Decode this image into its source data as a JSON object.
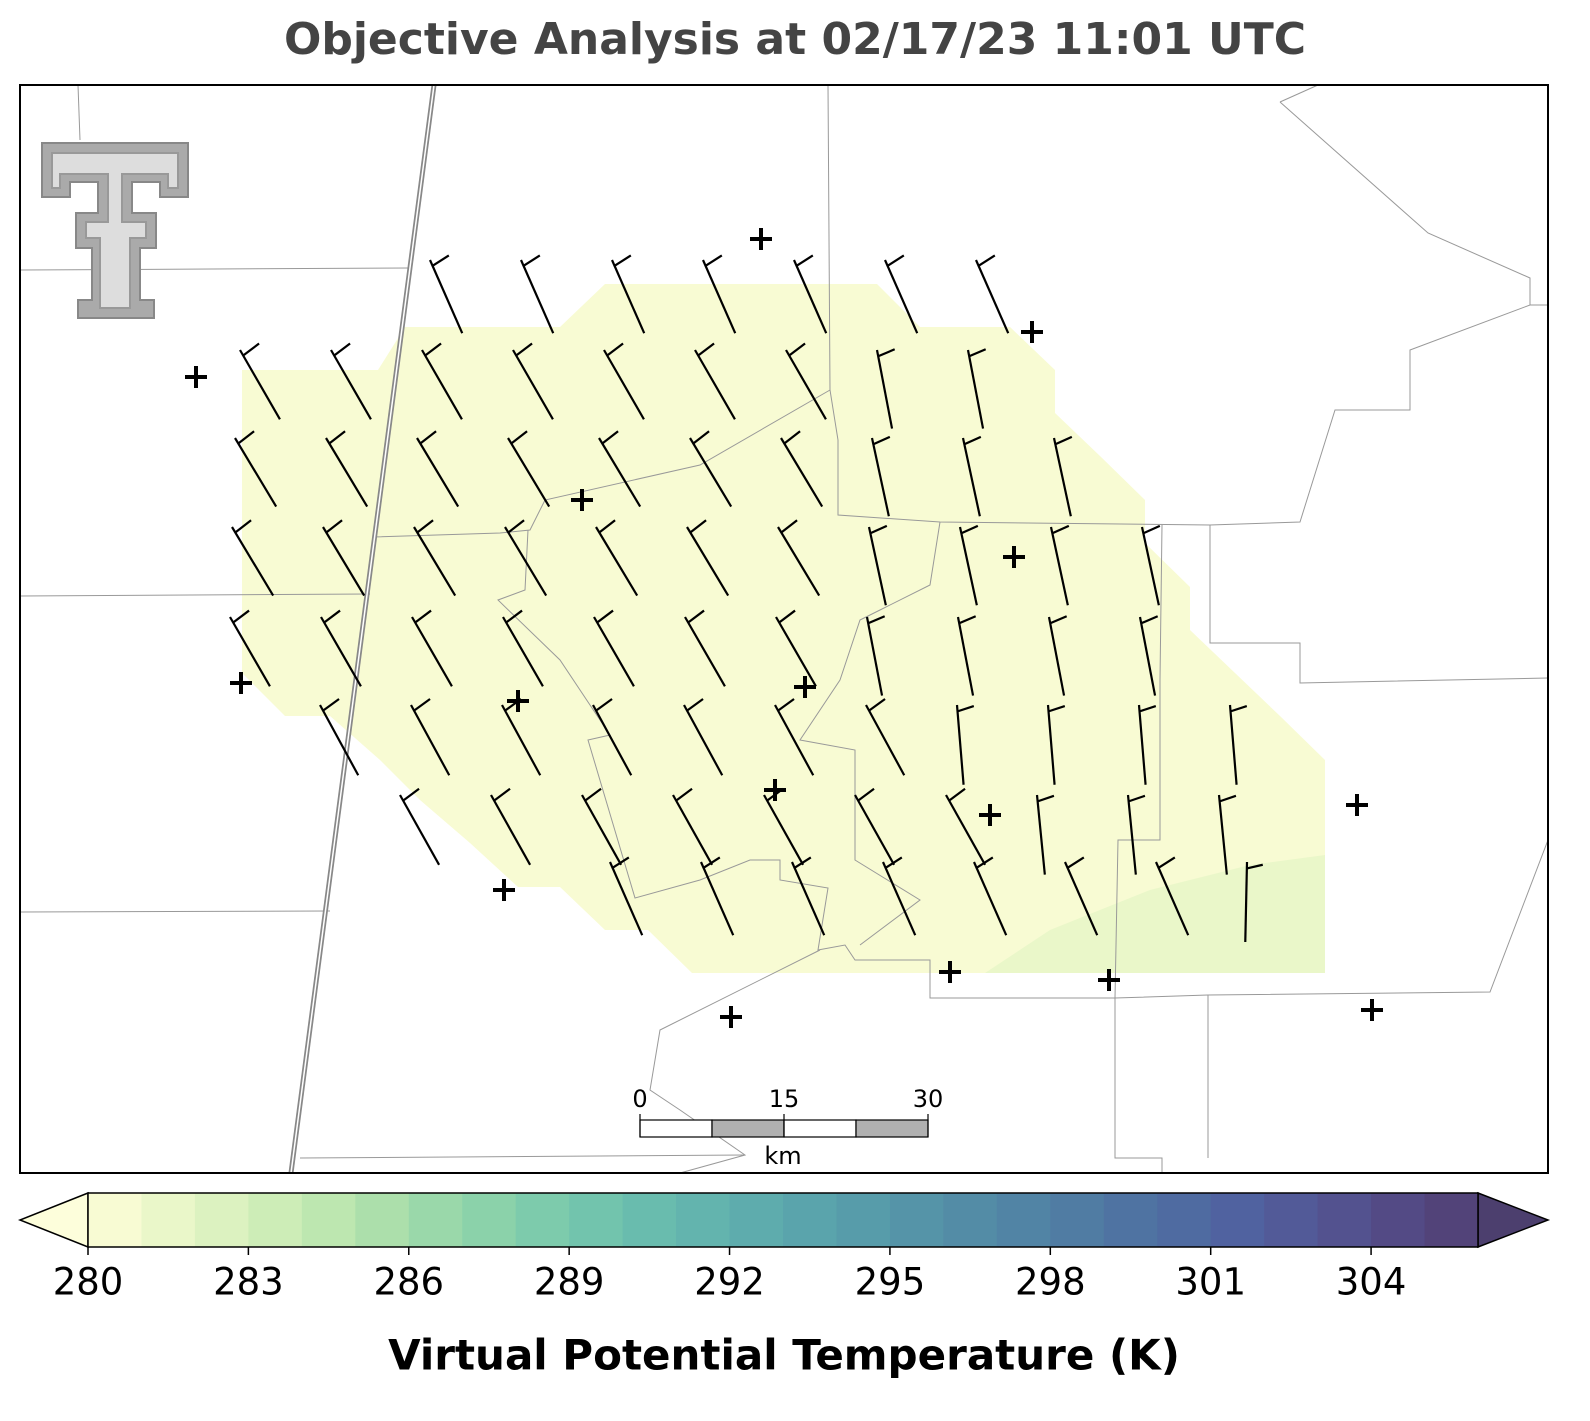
{
  "title": "Objective Analysis at 02/17/23 11:01 UTC",
  "scale_bar": {
    "ticks": [
      0,
      15,
      30
    ],
    "unit": "km"
  },
  "colorbar": {
    "label": "Virtual Potential Temperature (K)",
    "levels": [
      280,
      281,
      282,
      283,
      284,
      285,
      286,
      287,
      288,
      289,
      290,
      291,
      292,
      293,
      294,
      295,
      296,
      297,
      298,
      299,
      300,
      301,
      302,
      303,
      304,
      305,
      306
    ],
    "colors": [
      "#f8fbd3",
      "#eaf7c9",
      "#dcf2c0",
      "#cdedb7",
      "#bde7b0",
      "#acdfab",
      "#9ad8aa",
      "#8bd2aa",
      "#7dcbac",
      "#72c4ad",
      "#69bcae",
      "#63b4ae",
      "#5eacad",
      "#5aa4ac",
      "#579caa",
      "#5594a8",
      "#538ca6",
      "#5184a5",
      "#507ca3",
      "#4f73a2",
      "#4f6ba1",
      "#5062a0",
      "#525a98",
      "#53528f",
      "#534a85",
      "#524379"
    ],
    "under_color": "#fdfedb",
    "over_color": "#4c3f6e",
    "ticks": [
      280,
      283,
      286,
      289,
      292,
      295,
      298,
      301,
      304
    ]
  }
}
